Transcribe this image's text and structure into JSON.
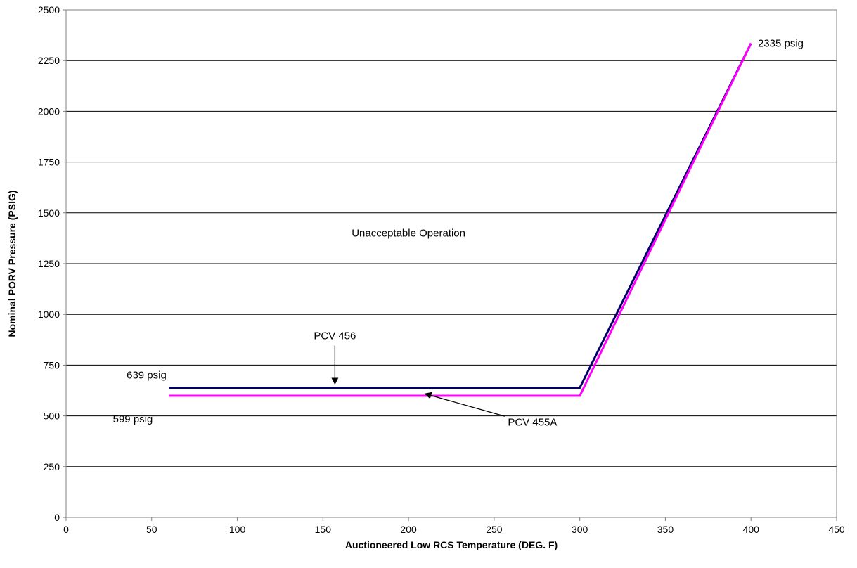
{
  "chart_data": {
    "type": "line",
    "title": "",
    "xlabel": "Auctioneered Low RCS Temperature (DEG. F)",
    "ylabel": "Nominal PORV Pressure (PSIG)",
    "xlim": [
      0,
      450
    ],
    "ylim": [
      0,
      2500
    ],
    "x_ticks": [
      0,
      50,
      100,
      150,
      200,
      250,
      300,
      350,
      400,
      450
    ],
    "y_ticks": [
      0,
      250,
      500,
      750,
      1000,
      1250,
      1500,
      1750,
      2000,
      2250,
      2500
    ],
    "grid": "horizontal",
    "legend": "none",
    "series": [
      {
        "color": "#000066",
        "points": [
          [
            60,
            639
          ],
          [
            300,
            639
          ],
          [
            400,
            2335
          ]
        ]
      },
      {
        "color": "#FF00FF",
        "points": [
          [
            60,
            599
          ],
          [
            300,
            599
          ],
          [
            400,
            2335
          ]
        ]
      }
    ],
    "annotations": {
      "unacceptable": {
        "text": "Unacceptable Operation",
        "x": 200,
        "y": 1400
      },
      "pcv456": {
        "text": "PCV 456",
        "x": 157,
        "y": 895,
        "arrow_to": [
          157,
          660
        ]
      },
      "pcv455a": {
        "text": "PCV 455A",
        "x": 258,
        "y": 470,
        "arrow_to": [
          210,
          608
        ]
      },
      "val639": {
        "text": "639 psig",
        "x": 47,
        "y": 702
      },
      "val599": {
        "text": "599 psig",
        "x": 39,
        "y": 485
      },
      "val2335": {
        "text": "2335 psig",
        "x": 404,
        "y": 2335
      }
    }
  }
}
